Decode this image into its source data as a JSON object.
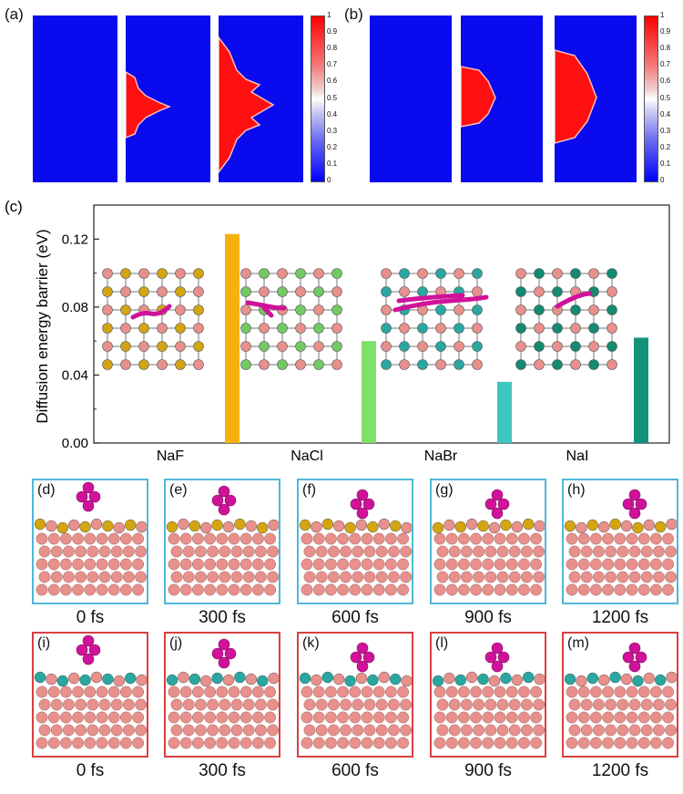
{
  "panel_a": {
    "label": "(a)"
  },
  "panel_b": {
    "label": "(b)"
  },
  "colorbar_ticks": [
    "1",
    "0.9",
    "0.8",
    "0.7",
    "0.6",
    "0.5",
    "0.4",
    "0.3",
    "0.2",
    "0.1",
    "0"
  ],
  "colors": {
    "field_blue": "#0a0aee",
    "field_red": "#ff1010",
    "naf_bar": "#f5b20e",
    "nacl_bar": "#7fe06a",
    "nabr_bar": "#3fc6bf",
    "nai_bar": "#13927a",
    "na_atom": "#e8908c",
    "trajectory": "#d0129a",
    "naf_halide": "#d4a512",
    "nabr_halide": "#2aa7a0",
    "box_top": "#4fb8d8",
    "box_bottom": "#d94040"
  },
  "chart_data": {
    "type": "bar",
    "panel_label": "(c)",
    "categories": [
      "NaF",
      "NaCl",
      "NaBr",
      "NaI"
    ],
    "values": [
      0.123,
      0.06,
      0.036,
      0.062
    ],
    "ylabel": "Diffusion energy barrier (eV)",
    "ylim": [
      0,
      0.14
    ],
    "yticks": [
      "0.00",
      "0.04",
      "0.08",
      "0.12"
    ],
    "grid": false
  },
  "md_top": {
    "labels": [
      "(d)",
      "(e)",
      "(f)",
      "(g)",
      "(h)"
    ],
    "times": [
      "0 fs",
      "300 fs",
      "600 fs",
      "900 fs",
      "1200 fs"
    ]
  },
  "md_bottom": {
    "labels": [
      "(i)",
      "(j)",
      "(k)",
      "(l)",
      "(m)"
    ],
    "times": [
      "0 fs",
      "300 fs",
      "600 fs",
      "900 fs",
      "1200 fs"
    ]
  }
}
